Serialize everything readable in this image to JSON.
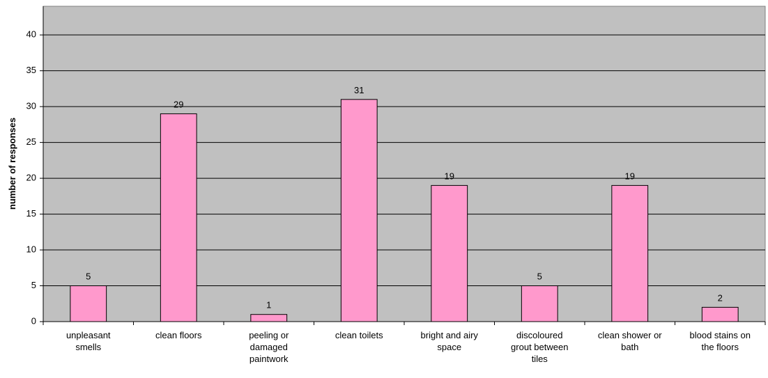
{
  "chart_data": {
    "type": "bar",
    "y_label": "number of responses",
    "categories": [
      "unpleasant smells",
      "clean floors",
      "peeling or damaged paintwork",
      "clean toilets",
      "bright and airy space",
      "discoloured grout between tiles",
      "clean shower or bath",
      "blood stains on the floors"
    ],
    "values": [
      5,
      29,
      1,
      31,
      19,
      5,
      19,
      2
    ],
    "color": "#ff99cc",
    "ylim": [
      0,
      44
    ],
    "yticks": [
      0,
      5,
      10,
      15,
      20,
      25,
      30,
      35,
      40
    ],
    "grid": true
  }
}
